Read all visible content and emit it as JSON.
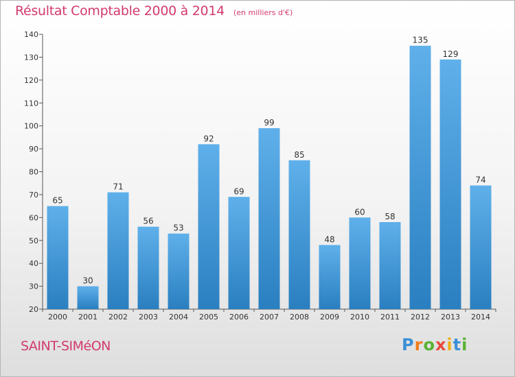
{
  "header": {
    "title": "Résultat Comptable 2000 à 2014",
    "subtitle": "(en milliers d'€)"
  },
  "footer": {
    "commune": "SAINT-SIMéON",
    "brand_letters": [
      {
        "char": "P",
        "color": "#3a8fd6"
      },
      {
        "char": "r",
        "color": "#f07c1a"
      },
      {
        "char": "o",
        "color": "#59b232"
      },
      {
        "char": "x",
        "color": "#e84a3c"
      },
      {
        "char": "i",
        "color": "#f0b018"
      },
      {
        "char": "t",
        "color": "#3a8fd6"
      },
      {
        "char": "i",
        "color": "#59b232"
      }
    ]
  },
  "colors": {
    "bar_top": "#5fb0ea",
    "bar_bottom": "#2a7fc0",
    "accent": "#d23a6c"
  },
  "chart_data": {
    "type": "bar",
    "title": "Résultat Comptable 2000 à 2014",
    "subtitle": "(en milliers d'€)",
    "xlabel": "",
    "ylabel": "",
    "ylim": [
      20,
      140
    ],
    "yticks": [
      20,
      30,
      40,
      50,
      60,
      70,
      80,
      90,
      100,
      110,
      120,
      130,
      140
    ],
    "grid": false,
    "categories": [
      "2000",
      "2001",
      "2002",
      "2003",
      "2004",
      "2005",
      "2006",
      "2007",
      "2008",
      "2009",
      "2010",
      "2011",
      "2012",
      "2013",
      "2014"
    ],
    "values": [
      65,
      30,
      71,
      56,
      53,
      92,
      69,
      99,
      85,
      48,
      60,
      58,
      135,
      129,
      74
    ]
  }
}
